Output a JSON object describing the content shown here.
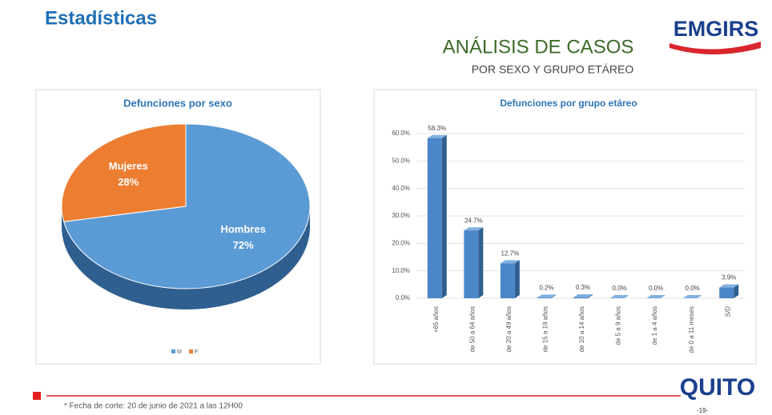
{
  "header": {
    "title": "Estadísticas",
    "heading": "ANÁLISIS DE CASOS",
    "subheading": "POR SEXO Y GRUPO ETÁREO",
    "logo": "EMGIRS"
  },
  "chart_data": [
    {
      "type": "pie",
      "title": "Defunciones por sexo",
      "categories": [
        "Hombres",
        "Mujeres"
      ],
      "values": [
        72,
        28
      ],
      "value_labels": [
        "72%",
        "28%"
      ],
      "colors": [
        "#5b9bd5",
        "#ed7d31"
      ],
      "legend": [
        "M",
        "F"
      ]
    },
    {
      "type": "bar",
      "title": "Defunciones por grupo etáreo",
      "categories": [
        "+65 años",
        "de 50 a 64 años",
        "de 20 a 49 años",
        "de 15 a 19 años",
        "de 10 a 14 años",
        "de 5 a 9 años",
        "de 1 a 4 años",
        "de 0 a 11 meses",
        "S/D"
      ],
      "values": [
        58.3,
        24.7,
        12.7,
        0.2,
        0.3,
        0.0,
        0.0,
        0.0,
        3.9
      ],
      "value_labels": [
        "58.3%",
        "24.7%",
        "12.7%",
        "0.2%",
        "0.3%",
        "0.0%",
        "0.0%",
        "0.0%",
        "3.9%"
      ],
      "color": "#4a86c8",
      "ylim": [
        0,
        60
      ],
      "yticks": [
        {
          "value": 0,
          "label": "0.0%"
        },
        {
          "value": 10,
          "label": "10.0%"
        },
        {
          "value": 20,
          "label": "20.0%"
        },
        {
          "value": 30,
          "label": "30.0%"
        },
        {
          "value": 40,
          "label": "40.0%"
        },
        {
          "value": 50,
          "label": "50.0%"
        },
        {
          "value": 60,
          "label": "60.0%"
        }
      ],
      "grid": true
    }
  ],
  "footer": {
    "note": "* Fecha de corte: 20 de junio de 2021 a las 12H00",
    "page": "-19-",
    "logo": "QUITO"
  }
}
